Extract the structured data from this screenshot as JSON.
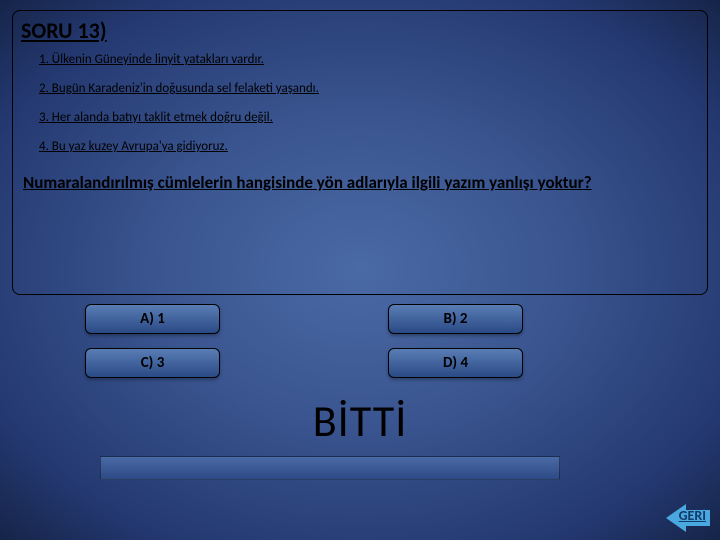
{
  "question": {
    "title": "SORU 13)",
    "statements": [
      "1. Ülkenin Güneyinde linyit yatakları vardır.",
      "2. Bugün Karadeniz'in doğusunda sel felaketi yaşandı.",
      "3. Her alanda batıyı taklit etmek doğru değil.",
      "4. Bu yaz kuzey Avrupa'ya  gidiyoruz."
    ],
    "prompt": "Numaralandırılmış cümlelerin hangisinde yön adlarıyla ilgili yazım yanlışı yoktur?"
  },
  "options": {
    "a": "A)  1",
    "b": "B)  2",
    "c": "C)  3",
    "d": "D)  4"
  },
  "status_text": "BİTTİ",
  "back_label": "GERİ",
  "colors": {
    "bg_center": "#4a6aa5",
    "bg_edge": "#152448",
    "button_top": "#5a7db5",
    "button_bottom": "#2a4a85",
    "arrow": "#4aa8e0",
    "text": "#000000"
  }
}
